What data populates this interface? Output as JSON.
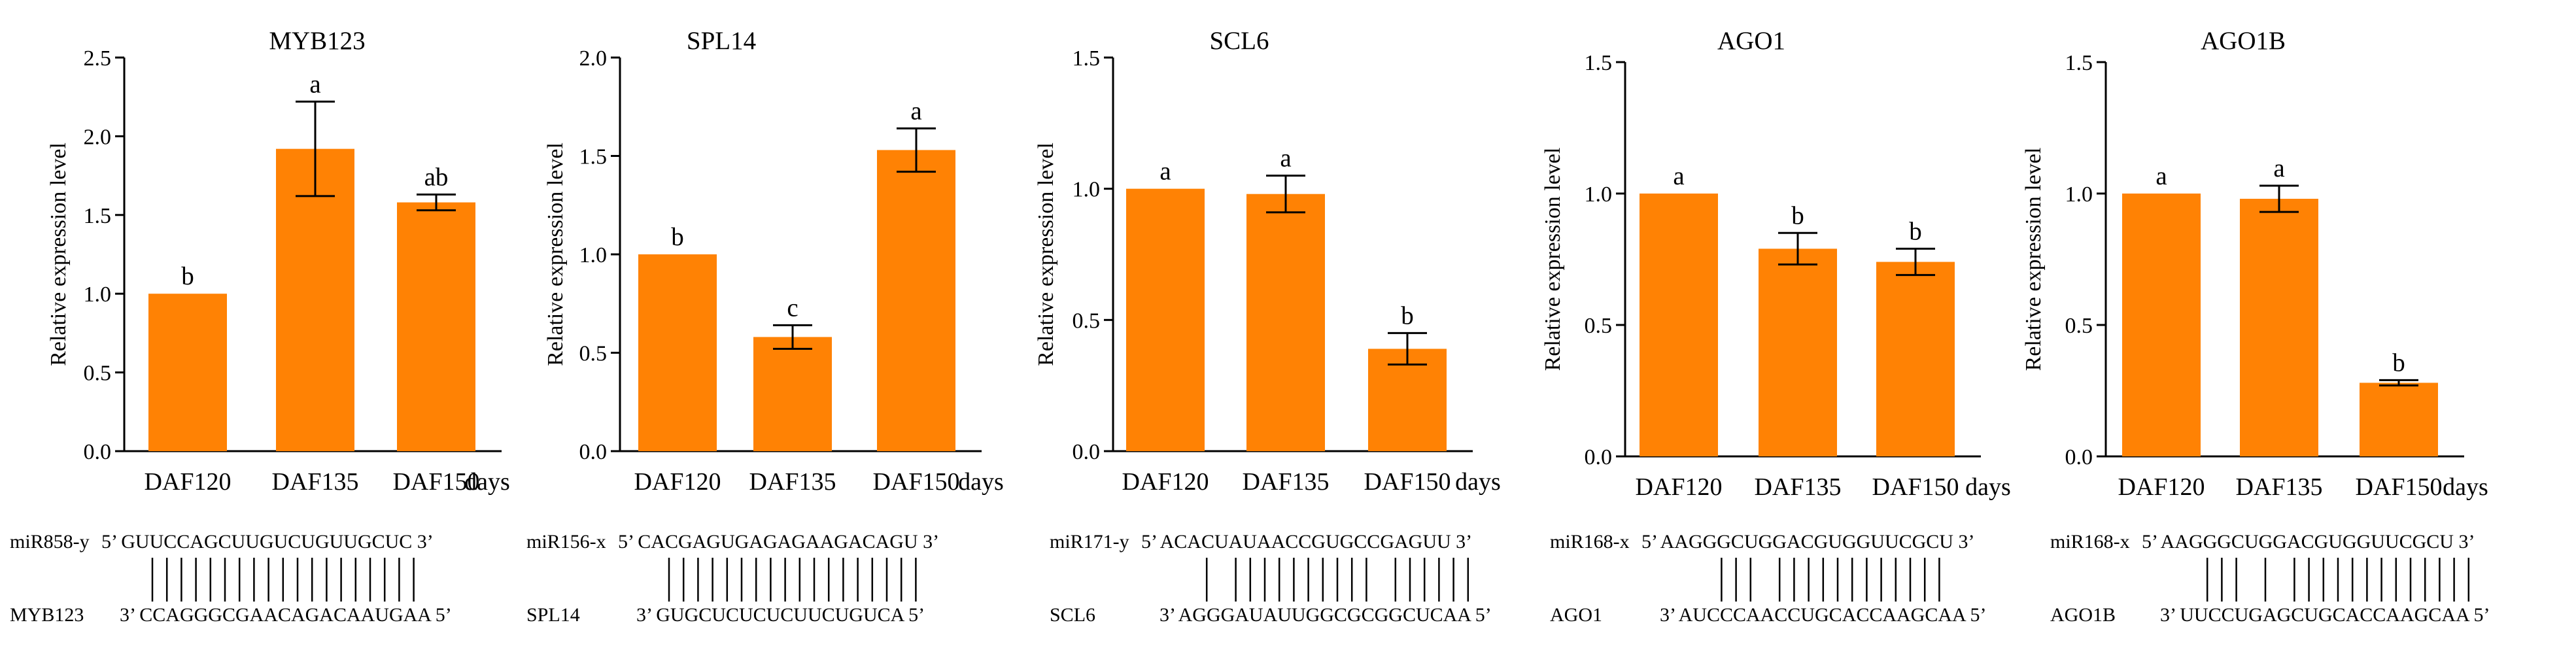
{
  "figure": {
    "background": "#ffffff",
    "bar_color": "#ff8204",
    "axis_color": "#000000"
  },
  "chart_data": [
    {
      "type": "bar",
      "title": "MYB123",
      "ylabel": "Relative expression level",
      "xlabel": "days",
      "categories": [
        "DAF120",
        "DAF135",
        "DAF150"
      ],
      "values": [
        1.0,
        1.92,
        1.58
      ],
      "errors": [
        0.0,
        0.3,
        0.05
      ],
      "significance": [
        "b",
        "a",
        "ab"
      ],
      "ylim": [
        0,
        2.5
      ],
      "yticks": [
        "0.0",
        "0.5",
        "1.0",
        "1.5",
        "2.0",
        "2.5"
      ],
      "duplex": {
        "mirna_label": "miR858-y",
        "mirna_seq": "5’ GUUCCAGCUUGUCUGUUGCUC 3’",
        "target_label": "MYB123",
        "target_seq": "3’ CCAGGGCGAACAGACAAUGAA 5’",
        "pairs": [
          1,
          1,
          1,
          1,
          1,
          1,
          1,
          1,
          1,
          1,
          1,
          1,
          1,
          1,
          1,
          1,
          1,
          1,
          1
        ]
      }
    },
    {
      "type": "bar",
      "title": "SPL14",
      "ylabel": "Relative expression level",
      "xlabel": "days",
      "categories": [
        "DAF120",
        "DAF135",
        "DAF150"
      ],
      "values": [
        1.0,
        0.58,
        1.53
      ],
      "errors": [
        0.0,
        0.06,
        0.11
      ],
      "significance": [
        "b",
        "c",
        "a"
      ],
      "ylim": [
        0,
        2.0
      ],
      "yticks": [
        "0.0",
        "0.5",
        "1.0",
        "1.5",
        "2.0"
      ],
      "duplex": {
        "mirna_label": "miR156-x",
        "mirna_seq": "5’ CACGAGUGAGAGAAGACAGU 3’",
        "target_label": "SPL14",
        "target_seq": "3’ GUGCUCUCUCUUCUGUCA 5’",
        "pairs": [
          1,
          1,
          1,
          1,
          1,
          1,
          1,
          1,
          1,
          1,
          1,
          1,
          1,
          1,
          1,
          1,
          1,
          1
        ]
      }
    },
    {
      "type": "bar",
      "title": "SCL6",
      "ylabel": "Relative expression level",
      "xlabel": "days",
      "categories": [
        "DAF120",
        "DAF135",
        "DAF150"
      ],
      "values": [
        1.0,
        0.98,
        0.39
      ],
      "errors": [
        0.0,
        0.07,
        0.06
      ],
      "significance": [
        "a",
        "a",
        "b"
      ],
      "ylim": [
        0,
        1.5
      ],
      "yticks": [
        "0.0",
        "0.5",
        "1.0",
        "1.5"
      ],
      "duplex": {
        "mirna_label": "miR171-y",
        "mirna_seq": "5’ ACACUAUAACCGUGCCGAGUU 3’",
        "target_label": "SCL6",
        "target_seq": "3’ AGGGAUAUUGGCGCGGCUCAA 5’",
        "pairs": [
          0,
          1,
          0,
          1,
          1,
          1,
          1,
          1,
          1,
          1,
          1,
          1,
          1,
          0,
          1,
          1,
          1,
          1,
          1,
          1
        ]
      }
    },
    {
      "type": "bar",
      "title": "AGO1",
      "ylabel": "Relative expression level",
      "xlabel": "days",
      "categories": [
        "DAF120",
        "DAF135",
        "DAF150"
      ],
      "values": [
        1.0,
        0.79,
        0.74
      ],
      "errors": [
        0.0,
        0.06,
        0.05
      ],
      "significance": [
        "a",
        "b",
        "b"
      ],
      "ylim": [
        0,
        1.5
      ],
      "yticks": [
        "0.0",
        "0.5",
        "1.0",
        "1.5"
      ],
      "duplex": {
        "mirna_label": "miR168-x",
        "mirna_seq": "5’ AAGGGCUGGACGUGGUUCGCU 3’",
        "target_label": "AGO1",
        "target_seq": "3’ AUCCCAACCUGCACCAAGCAA 5’",
        "pairs": [
          0,
          0,
          1,
          1,
          1,
          0,
          1,
          1,
          1,
          1,
          1,
          1,
          1,
          1,
          1,
          1,
          1,
          1
        ]
      }
    },
    {
      "type": "bar",
      "title": "AGO1B",
      "ylabel": "Relative expression level",
      "xlabel": "days",
      "categories": [
        "DAF120",
        "DAF135",
        "DAF150"
      ],
      "values": [
        1.0,
        0.98,
        0.28
      ],
      "errors": [
        0.0,
        0.05,
        0.01
      ],
      "significance": [
        "a",
        "a",
        "b"
      ],
      "ylim": [
        0,
        1.5
      ],
      "yticks": [
        "0.0",
        "0.5",
        "1.0",
        "1.5"
      ],
      "duplex": {
        "mirna_label": "miR168-x",
        "mirna_seq": "5’ AAGGGCUGGACGUGGUUCGCU 3’",
        "target_label": "AGO1B",
        "target_seq": "3’ UUCCUGAGCUGCACCAAGCAA 5’",
        "pairs": [
          0,
          1,
          1,
          1,
          0,
          1,
          0,
          1,
          1,
          1,
          1,
          1,
          1,
          1,
          1,
          1,
          1,
          1,
          1,
          1
        ]
      }
    }
  ]
}
